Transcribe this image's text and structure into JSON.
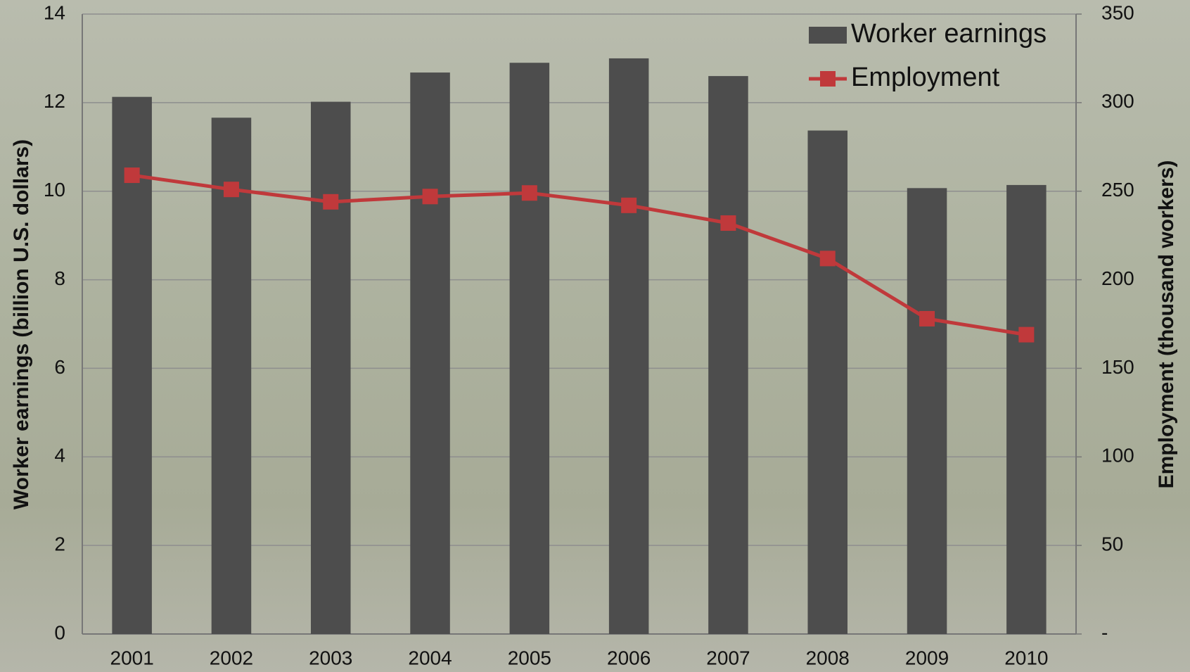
{
  "chart_data": {
    "type": "bar-line",
    "categories": [
      "2001",
      "2002",
      "2003",
      "2004",
      "2005",
      "2006",
      "2007",
      "2008",
      "2009",
      "2010"
    ],
    "series": [
      {
        "name": "Worker earnings",
        "type": "bar",
        "color": "#4d4d4d",
        "axis": "y",
        "values": [
          12.13,
          11.66,
          12.02,
          12.68,
          12.9,
          13.0,
          12.6,
          11.37,
          10.07,
          10.14
        ]
      },
      {
        "name": "Employment",
        "type": "line",
        "color": "#c0393b",
        "axis": "y2",
        "values": [
          259,
          251,
          244,
          247,
          249,
          242,
          232,
          212,
          178,
          169
        ]
      }
    ],
    "ylabel": "Worker earnings (billion U.S. dollars)",
    "y2label": "Employment (thousand workers)",
    "ylim": [
      0,
      14
    ],
    "yticks": [
      0,
      2,
      4,
      6,
      8,
      10,
      12,
      14
    ],
    "y2lim": [
      0,
      350
    ],
    "y2ticks": [
      {
        "value": 0,
        "label": "-"
      },
      50,
      100,
      150,
      200,
      250,
      300,
      350
    ],
    "grid": true,
    "legend": "upper-right"
  }
}
